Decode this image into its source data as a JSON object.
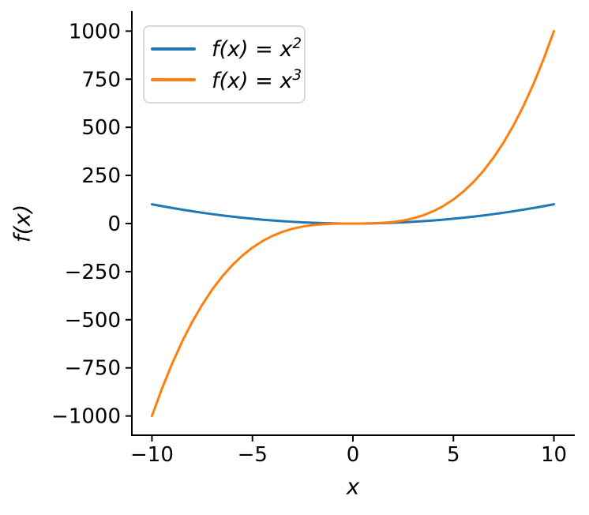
{
  "chart_data": {
    "type": "line",
    "title": "",
    "xlabel": "x",
    "ylabel": "f(x)",
    "xlim": [
      -11,
      11
    ],
    "ylim": [
      -1100,
      1100
    ],
    "grid": false,
    "legend_position": "upper left",
    "axis_color": "#000000",
    "background_color": "#ffffff",
    "xticks": {
      "values": [
        -10,
        -5,
        0,
        5,
        10
      ],
      "labels": [
        "−10",
        "−5",
        "0",
        "5",
        "10"
      ]
    },
    "yticks": {
      "values": [
        1000,
        750,
        500,
        250,
        0,
        -250,
        -500,
        -750,
        -1000
      ],
      "labels": [
        "1000",
        "750",
        "500",
        "250",
        "0",
        "−250",
        "−500",
        "−750",
        "−1000"
      ]
    },
    "x": [
      -10,
      -9.5,
      -9,
      -8.5,
      -8,
      -7.5,
      -7,
      -6.5,
      -6,
      -5.5,
      -5,
      -4.5,
      -4,
      -3.5,
      -3,
      -2.5,
      -2,
      -1.5,
      -1,
      -0.5,
      0,
      0.5,
      1,
      1.5,
      2,
      2.5,
      3,
      3.5,
      4,
      4.5,
      5,
      5.5,
      6,
      6.5,
      7,
      7.5,
      8,
      8.5,
      9,
      9.5,
      10
    ],
    "series": [
      {
        "name": "f(x) = x²",
        "label_base": "f(x) = x",
        "label_exp": "2",
        "color": "#1f77b4",
        "values": [
          100,
          90.25,
          81,
          72.25,
          64,
          56.25,
          49,
          42.25,
          36,
          30.25,
          25,
          20.25,
          16,
          12.25,
          9,
          6.25,
          4,
          2.25,
          1,
          0.25,
          0,
          0.25,
          1,
          2.25,
          4,
          6.25,
          9,
          12.25,
          16,
          20.25,
          25,
          30.25,
          36,
          42.25,
          49,
          56.25,
          64,
          72.25,
          81,
          90.25,
          100
        ]
      },
      {
        "name": "f(x) = x³",
        "label_base": "f(x) = x",
        "label_exp": "3",
        "color": "#ff7f0e",
        "values": [
          -1000,
          -857.375,
          -729,
          -614.125,
          -512,
          -421.875,
          -343,
          -274.625,
          -216,
          -166.375,
          -125,
          -91.125,
          -64,
          -42.875,
          -27,
          -15.625,
          -8,
          -3.375,
          -1,
          -0.125,
          0,
          0.125,
          1,
          3.375,
          8,
          15.625,
          27,
          42.875,
          64,
          91.125,
          125,
          166.375,
          216,
          274.625,
          343,
          421.875,
          512,
          614.125,
          729,
          857.375,
          1000
        ]
      }
    ]
  }
}
